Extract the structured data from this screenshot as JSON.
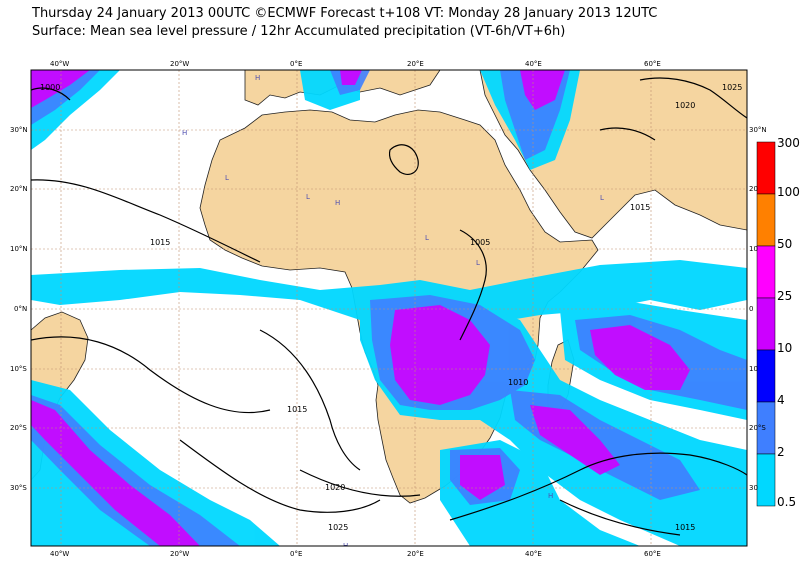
{
  "header": {
    "line1": "Thursday 24 January 2013 00UTC ©ECMWF Forecast t+108 VT: Monday 28 January 2013 12UTC",
    "line2": "Surface: Mean sea level pressure / 12hr Accumulated precipitation (VT-6h/VT+6h)"
  },
  "axes": {
    "top_lon": [
      "40°W",
      "20°W",
      "0°E",
      "20°E",
      "40°E",
      "60°E"
    ],
    "bottom_lon": [
      "40°W",
      "20°W",
      "0°E",
      "20°E",
      "40°E",
      "60°E"
    ],
    "left_lat": [
      "30°N",
      "20°N",
      "10°N",
      "0°N",
      "10°S",
      "20°S",
      "30°S"
    ],
    "right_lat": [
      "30°N",
      "20",
      "10",
      "0",
      "10",
      "20°S",
      "30"
    ]
  },
  "colorbar": {
    "labels": [
      "300",
      "100",
      "50",
      "25",
      "10",
      "4",
      "2",
      "0.5"
    ],
    "colors": [
      "#ff0000",
      "#ff8000",
      "#ff00ff",
      "#cc00ff",
      "#0000ff",
      "#3f7fff",
      "#00d8ff"
    ]
  },
  "isobar_labels": [
    "1000",
    "1005",
    "1010",
    "1015",
    "1020",
    "1025"
  ],
  "pressure_centers": [
    "H",
    "L"
  ],
  "colors": {
    "land": "#f5d5a0",
    "ocean": "#ffffff",
    "contour": "#000000",
    "grid": "#c09070"
  }
}
